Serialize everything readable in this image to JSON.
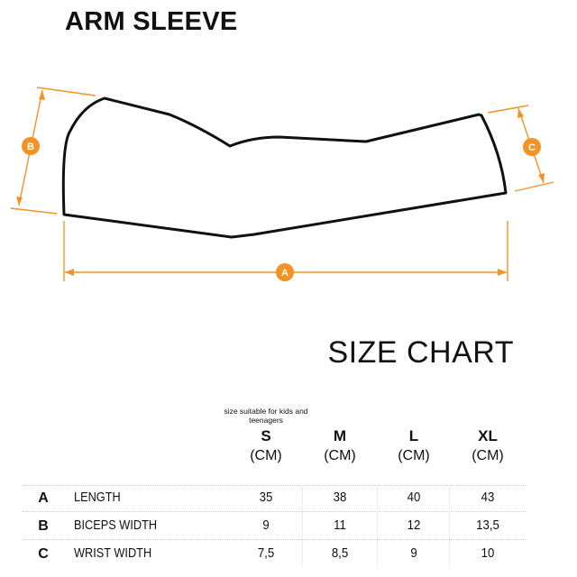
{
  "title": "ARM SLEEVE",
  "diagram": {
    "accent_color": "#f39325",
    "markers": {
      "a": "A",
      "b": "B",
      "c": "C"
    }
  },
  "size_chart": {
    "title": "SIZE CHART",
    "note": "size suitable for kids and teenagers",
    "columns": [
      {
        "size": "S",
        "unit": "(CM)"
      },
      {
        "size": "M",
        "unit": "(CM)"
      },
      {
        "size": "L",
        "unit": "(CM)"
      },
      {
        "size": "XL",
        "unit": "(CM)"
      }
    ],
    "rows": [
      {
        "letter": "A",
        "label": "LENGTH",
        "values": [
          "35",
          "38",
          "40",
          "43"
        ]
      },
      {
        "letter": "B",
        "label": "BICEPS WIDTH",
        "values": [
          "9",
          "11",
          "12",
          "13,5"
        ]
      },
      {
        "letter": "C",
        "label": "WRIST WIDTH",
        "values": [
          "7,5",
          "8,5",
          "9",
          "10"
        ]
      }
    ]
  }
}
